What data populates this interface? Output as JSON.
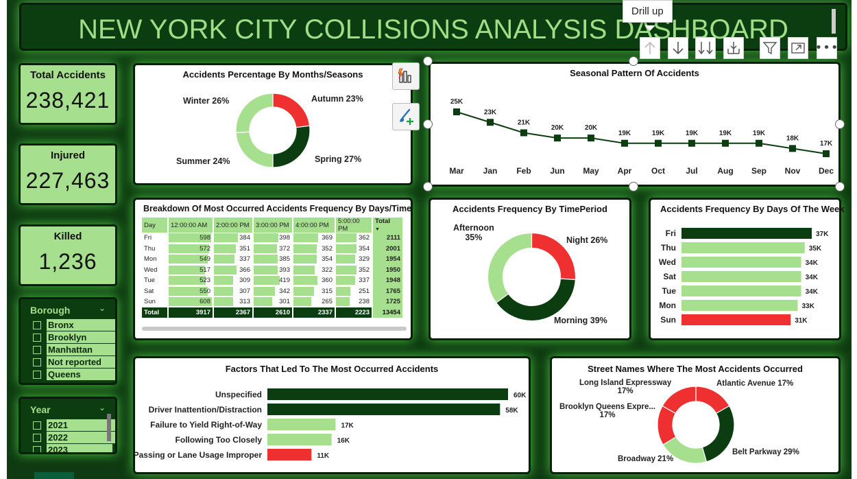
{
  "title": "NEW YORK CITY COLLISIONS ANALYSIS DASHBOARD",
  "kpis": [
    {
      "label": "Total Accidents",
      "value": "238,421"
    },
    {
      "label": "Injured",
      "value": "227,463"
    },
    {
      "label": "Killed",
      "value": "1,236"
    }
  ],
  "borough_slicer": {
    "header": "Borough",
    "items": [
      "Bronx",
      "Brooklyn",
      "Manhattan",
      "Not reported",
      "Queens"
    ]
  },
  "year_slicer": {
    "header": "Year",
    "items": [
      "2021",
      "2022",
      "2023"
    ]
  },
  "tooltip": "Drill up",
  "toolbar": {
    "icons": [
      "drill-up-icon",
      "drill-down-icon",
      "expand-next-level-icon",
      "expand-all-icon",
      "filter-icon",
      "focus-mode-icon",
      "more-options-icon"
    ]
  },
  "colors": {
    "dark_green": "#0b3d10",
    "light_green": "#a6df8e",
    "red": "#ee3030",
    "background": "#0f3a12"
  },
  "months_donut": {
    "title": "Accidents Percentage By Months/Seasons",
    "chart_data": {
      "type": "pie",
      "series": [
        {
          "label": "Autumn 23%",
          "value": 23,
          "color": "#ee3030"
        },
        {
          "label": "Spring 27%",
          "value": 27,
          "color": "#0b3d10"
        },
        {
          "label": "Summer 24%",
          "value": 24,
          "color": "#a6df8e"
        },
        {
          "label": "Winter 26%",
          "value": 26,
          "color": "#a6df8e"
        }
      ]
    }
  },
  "seasonal_line": {
    "title": "Seasonal Pattern Of Accidents",
    "chart_data": {
      "type": "line",
      "x": [
        "Mar",
        "Jan",
        "Feb",
        "Jun",
        "May",
        "Apr",
        "Oct",
        "Jul",
        "Aug",
        "Sep",
        "Nov",
        "Dec"
      ],
      "y": [
        25,
        23,
        21,
        20,
        20,
        19,
        19,
        19,
        19,
        19,
        18,
        17
      ],
      "labels": [
        "25K",
        "23K",
        "21K",
        "20K",
        "20K",
        "19K",
        "19K",
        "19K",
        "19K",
        "19K",
        "18K",
        "17K"
      ]
    }
  },
  "matrix": {
    "title": "Breakdown Of Most Occurred Accidents Frequency By Days/Time",
    "columns": [
      "Day",
      "12:00:00 AM",
      "2:00:00 PM",
      "3:00:00 PM",
      "4:00:00 PM",
      "5:00:00 PM",
      "Total"
    ],
    "rows": [
      {
        "day": "Fri",
        "values": [
          598,
          384,
          398,
          369,
          362
        ],
        "total": "2111"
      },
      {
        "day": "Thu",
        "values": [
          572,
          351,
          372,
          352,
          354
        ],
        "total": "2001"
      },
      {
        "day": "Mon",
        "values": [
          549,
          337,
          385,
          354,
          329
        ],
        "total": "1954"
      },
      {
        "day": "Wed",
        "values": [
          517,
          366,
          393,
          322,
          352
        ],
        "total": "1950"
      },
      {
        "day": "Tue",
        "values": [
          523,
          309,
          419,
          360,
          337
        ],
        "total": "1948"
      },
      {
        "day": "Sat",
        "values": [
          550,
          307,
          342,
          315,
          251
        ],
        "total": "1765"
      },
      {
        "day": "Sun",
        "values": [
          608,
          313,
          301,
          265,
          238
        ],
        "total": "1725"
      }
    ],
    "totals": {
      "label": "Total",
      "values": [
        "3917",
        "2367",
        "2610",
        "2337",
        "2223"
      ],
      "total": "13454"
    }
  },
  "time_donut": {
    "title": "Accidents Frequency By TimePeriod",
    "chart_data": {
      "type": "pie",
      "series": [
        {
          "label": "Night 26%",
          "value": 26,
          "color": "#ee3030"
        },
        {
          "label": "Morning 39%",
          "value": 39,
          "color": "#0b3d10"
        },
        {
          "label": "Afternoon 35%",
          "value": 35,
          "color": "#a6df8e"
        }
      ]
    },
    "afternoon_line1": "Afternoon",
    "afternoon_line2": "35%"
  },
  "days_bar": {
    "title": "Accidents Frequency By Days Of The Week",
    "chart_data": {
      "type": "bar",
      "categories": [
        "Fri",
        "Thu",
        "Wed",
        "Sat",
        "Tue",
        "Mon",
        "Sun"
      ],
      "values": [
        37,
        35,
        34,
        34,
        34,
        33,
        31
      ],
      "labels": [
        "37K",
        "35K",
        "34K",
        "34K",
        "34K",
        "33K",
        "31K"
      ]
    }
  },
  "factors_bar": {
    "title": "Factors That Led To The Most Occurred Accidents",
    "chart_data": {
      "type": "bar",
      "categories": [
        "Unspecified",
        "Driver Inattention/Distraction",
        "Failure to Yield Right-of-Way",
        "Following Too Closely",
        "Passing or Lane Usage Improper"
      ],
      "values": [
        60,
        58,
        17,
        16,
        11
      ],
      "labels": [
        "60K",
        "58K",
        "17K",
        "16K",
        "11K"
      ]
    }
  },
  "streets_donut": {
    "title": "Street Names Where The Most Accidents Occurred",
    "chart_data": {
      "type": "pie",
      "series": [
        {
          "label": "Atlantic Avenue 17%",
          "value": 17,
          "color": "#ee3030"
        },
        {
          "label": "Belt Parkway 29%",
          "value": 29,
          "color": "#0b3d10"
        },
        {
          "label": "Broadway 21%",
          "value": 21,
          "color": "#a6df8e"
        },
        {
          "label": "Brooklyn Queens Expre... 17%",
          "value": 17,
          "color": "#ee3030"
        },
        {
          "label": "Long Island Expressway 17%",
          "value": 17,
          "color": "#ee3030"
        }
      ]
    },
    "label_lie_1": "Long Island Expressway",
    "label_lie_2": "17%",
    "label_bqe_1": "Brooklyn Queens Expre...",
    "label_bqe_2": "17%"
  }
}
